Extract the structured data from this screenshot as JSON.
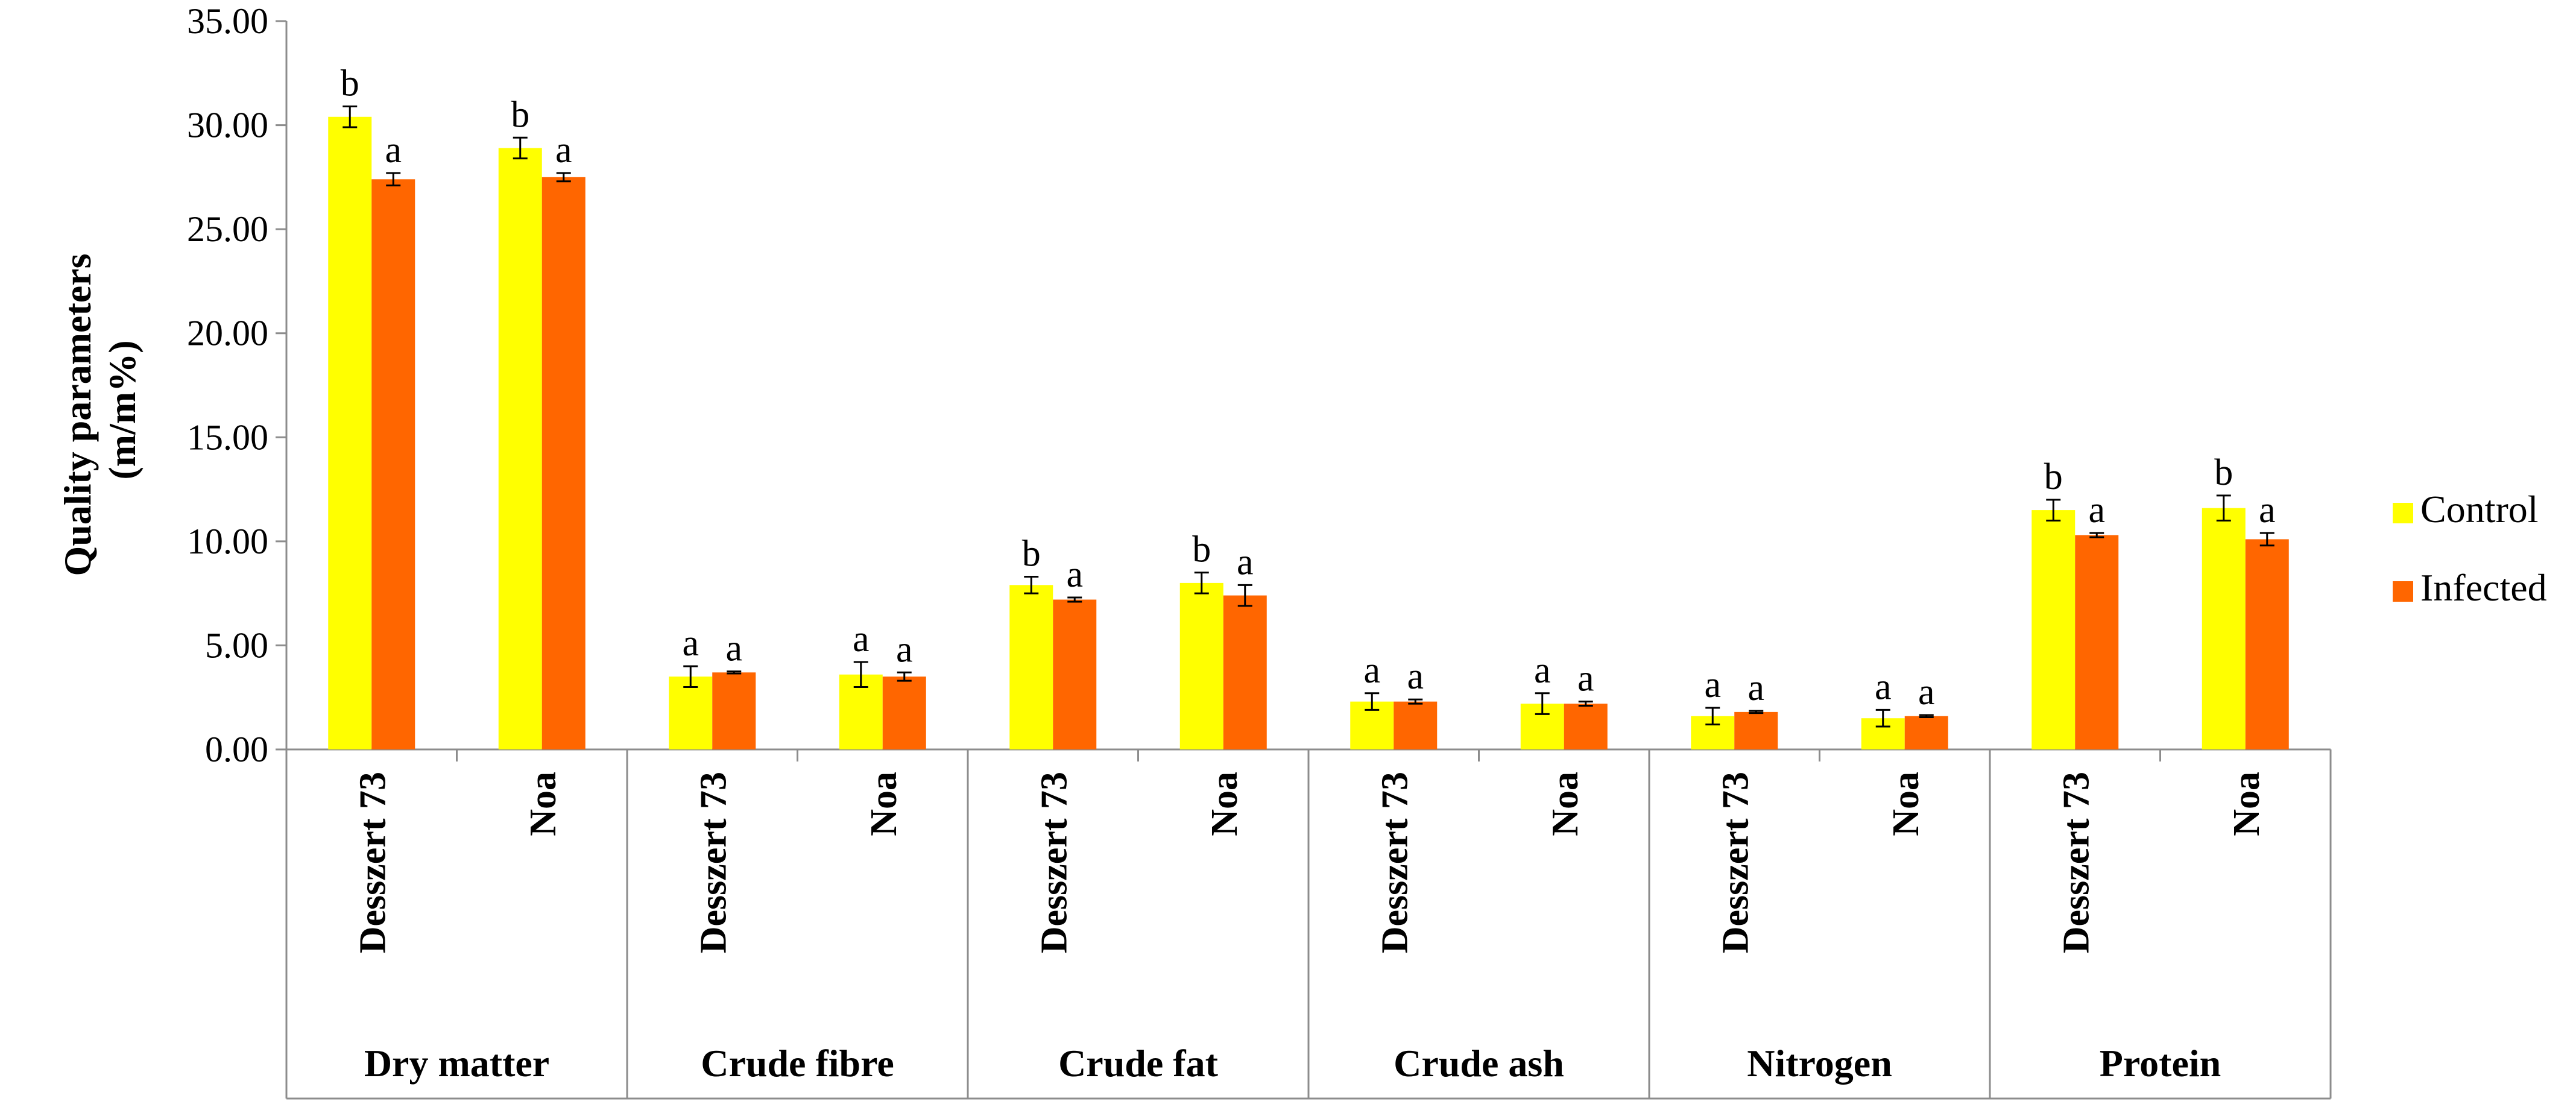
{
  "chart_data": {
    "type": "bar",
    "title": "",
    "ylabel_lines": [
      "Quality parameters",
      "(m/m%)"
    ],
    "ylim": [
      0,
      35
    ],
    "ytick_step": 5,
    "ytick_labels": [
      "0.00",
      "5.00",
      "10.00",
      "15.00",
      "20.00",
      "25.00",
      "30.00",
      "35.00"
    ],
    "groups": [
      {
        "label": "Dry matter",
        "varieties": [
          "Desszert 73",
          "Noa"
        ]
      },
      {
        "label": "Crude fibre",
        "varieties": [
          "Desszert 73",
          "Noa"
        ]
      },
      {
        "label": "Crude fat",
        "varieties": [
          "Desszert 73",
          "Noa"
        ]
      },
      {
        "label": "Crude ash",
        "varieties": [
          "Desszert 73",
          "Noa"
        ]
      },
      {
        "label": "Nitrogen",
        "varieties": [
          "Desszert 73",
          "Noa"
        ]
      },
      {
        "label": "Protein",
        "varieties": [
          "Desszert 73",
          "Noa"
        ]
      }
    ],
    "series": [
      {
        "name": "Control",
        "color": "#ffff00",
        "values": [
          30.4,
          28.9,
          3.5,
          3.6,
          7.9,
          8.0,
          2.3,
          2.2,
          1.6,
          1.5,
          11.5,
          11.6
        ],
        "errors": [
          0.5,
          0.5,
          0.5,
          0.6,
          0.4,
          0.5,
          0.4,
          0.5,
          0.4,
          0.4,
          0.5,
          0.6
        ],
        "significance": [
          "b",
          "b",
          "a",
          "a",
          "b",
          "b",
          "a",
          "a",
          "a",
          "a",
          "b",
          "b"
        ]
      },
      {
        "name": "Infected",
        "color": "#ff6600",
        "values": [
          27.4,
          27.5,
          3.7,
          3.5,
          7.2,
          7.4,
          2.3,
          2.2,
          1.8,
          1.6,
          10.3,
          10.1
        ],
        "errors": [
          0.3,
          0.2,
          0.05,
          0.2,
          0.1,
          0.5,
          0.1,
          0.1,
          0.05,
          0.05,
          0.1,
          0.3
        ],
        "significance": [
          "a",
          "a",
          "a",
          "a",
          "a",
          "a",
          "a",
          "a",
          "a",
          "a",
          "a",
          "a"
        ]
      }
    ],
    "legend_position": "right"
  }
}
